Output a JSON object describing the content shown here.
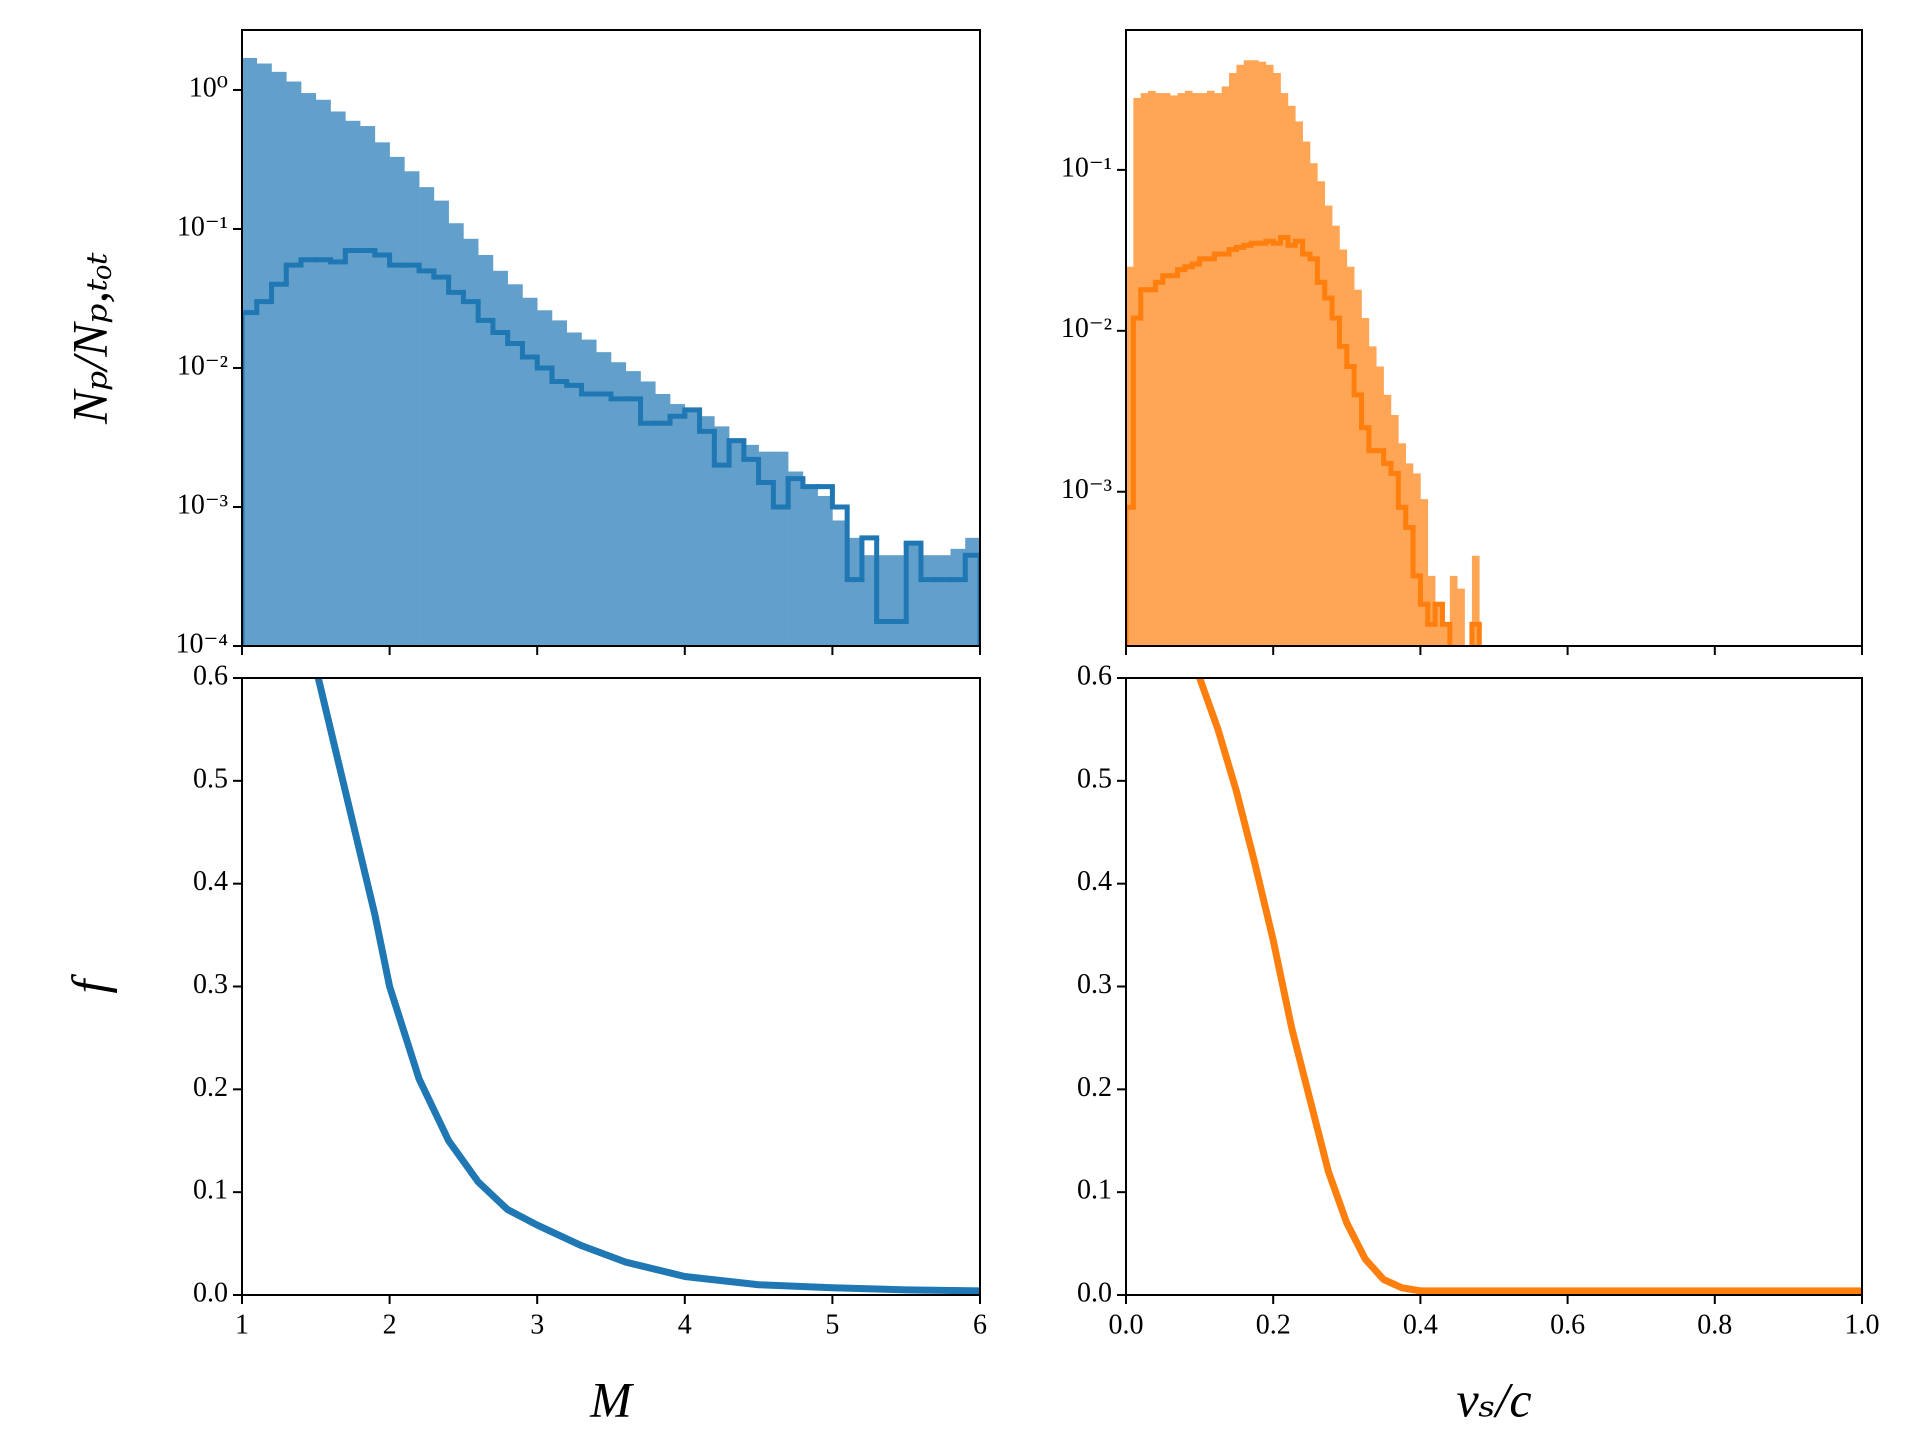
{
  "chart_data": [
    {
      "type": "histogram",
      "log_y": true,
      "ylabel": "Nₚ/Nₚ,ₜₒₜ",
      "xlim": [
        1,
        6
      ],
      "xticks": [
        1,
        2,
        3,
        4,
        5,
        6
      ],
      "ylim": [
        0.0001,
        2.7
      ],
      "yticks": [
        {
          "value": 0.0001,
          "label": "10⁻⁴"
        },
        {
          "value": 0.001,
          "label": "10⁻³"
        },
        {
          "value": 0.01,
          "label": "10⁻²"
        },
        {
          "value": 0.1,
          "label": "10⁻¹"
        },
        {
          "value": 1,
          "label": "10⁰"
        }
      ],
      "bins": [
        1,
        1.1,
        1.2,
        1.3,
        1.4,
        1.5,
        1.6,
        1.7,
        1.8,
        1.9,
        2,
        2.1,
        2.2,
        2.3,
        2.4,
        2.5,
        2.6,
        2.7,
        2.8,
        2.9,
        3,
        3.1,
        3.2,
        3.3,
        3.4,
        3.5,
        3.6,
        3.7,
        3.8,
        3.9,
        4,
        4.1,
        4.2,
        4.3,
        4.4,
        4.5,
        4.6,
        4.7,
        4.8,
        4.9,
        5,
        5.1,
        5.2,
        5.3,
        5.4,
        5.5,
        5.6,
        5.7,
        5.8,
        5.9,
        6
      ],
      "series": [
        {
          "style": "filled",
          "color": "#62a0cb",
          "values": [
            1.7,
            1.55,
            1.35,
            1.15,
            0.95,
            0.85,
            0.7,
            0.6,
            0.55,
            0.42,
            0.33,
            0.26,
            0.2,
            0.16,
            0.11,
            0.085,
            0.065,
            0.05,
            0.04,
            0.032,
            0.026,
            0.022,
            0.018,
            0.016,
            0.013,
            0.011,
            0.0095,
            0.008,
            0.0065,
            0.0055,
            0.005,
            0.0045,
            0.0038,
            0.003,
            0.0028,
            0.0025,
            0.0025,
            0.0018,
            0.0014,
            0.0012,
            0.0008,
            0.0006,
            0.00045,
            0.00045,
            0.00045,
            0.00055,
            0.00045,
            0.00045,
            0.0005,
            0.0006
          ]
        },
        {
          "style": "step",
          "color": "#1f77b4",
          "values": [
            0.025,
            0.03,
            0.04,
            0.055,
            0.06,
            0.06,
            0.058,
            0.07,
            0.07,
            0.065,
            0.055,
            0.055,
            0.05,
            0.045,
            0.035,
            0.03,
            0.022,
            0.018,
            0.015,
            0.012,
            0.01,
            0.008,
            0.0075,
            0.0065,
            0.0065,
            0.006,
            0.006,
            0.004,
            0.004,
            0.0045,
            0.005,
            0.0035,
            0.002,
            0.003,
            0.0022,
            0.0015,
            0.001,
            0.0016,
            0.0014,
            0.0014,
            0.001,
            0.0003,
            0.0006,
            0.00015,
            0.00015,
            0.00055,
            0.0003,
            0.0003,
            0.0003,
            0.00045
          ]
        }
      ]
    },
    {
      "type": "histogram",
      "log_y": true,
      "xlim": [
        0,
        1
      ],
      "xticks": [
        0,
        0.2,
        0.4,
        0.6,
        0.8,
        1
      ],
      "ylim": [
        0.00011,
        0.74
      ],
      "yticks": [
        {
          "value": 0.001,
          "label": "10⁻³"
        },
        {
          "value": 0.01,
          "label": "10⁻²"
        },
        {
          "value": 0.1,
          "label": "10⁻¹"
        }
      ],
      "bins": [
        0,
        0.01,
        0.02,
        0.03,
        0.04,
        0.05,
        0.06,
        0.07,
        0.08,
        0.09,
        0.1,
        0.11,
        0.12,
        0.13,
        0.14,
        0.15,
        0.16,
        0.17,
        0.18,
        0.19,
        0.2,
        0.21,
        0.22,
        0.23,
        0.24,
        0.25,
        0.26,
        0.27,
        0.28,
        0.29,
        0.3,
        0.31,
        0.32,
        0.33,
        0.34,
        0.35,
        0.36,
        0.37,
        0.38,
        0.39,
        0.4,
        0.41,
        0.42,
        0.43,
        0.44,
        0.45,
        0.46,
        0.47,
        0.48
      ],
      "series": [
        {
          "style": "filled",
          "color": "#ffa556",
          "values": [
            0.025,
            0.28,
            0.3,
            0.31,
            0.3,
            0.3,
            0.29,
            0.3,
            0.31,
            0.3,
            0.3,
            0.31,
            0.3,
            0.33,
            0.4,
            0.45,
            0.48,
            0.48,
            0.47,
            0.45,
            0.4,
            0.3,
            0.25,
            0.2,
            0.15,
            0.11,
            0.085,
            0.06,
            0.045,
            0.032,
            0.025,
            0.018,
            0.012,
            0.008,
            0.006,
            0.004,
            0.003,
            0.002,
            0.0015,
            0.0013,
            0.0009,
            0.0003,
            0.0002,
            0.00015,
            0.0003,
            0.00025,
            0,
            0.0004
          ]
        },
        {
          "style": "step",
          "color": "#ff7f0e",
          "values": [
            0.0008,
            0.012,
            0.018,
            0.018,
            0.02,
            0.022,
            0.022,
            0.024,
            0.025,
            0.026,
            0.028,
            0.028,
            0.03,
            0.03,
            0.032,
            0.033,
            0.034,
            0.035,
            0.035,
            0.036,
            0.035,
            0.038,
            0.034,
            0.036,
            0.03,
            0.028,
            0.02,
            0.016,
            0.012,
            0.008,
            0.006,
            0.004,
            0.0025,
            0.0018,
            0.0018,
            0.0015,
            0.0013,
            0.0008,
            0.0006,
            0.0003,
            0.0002,
            0.00015,
            0.0002,
            0.00015,
            0,
            0,
            0,
            0.00015
          ]
        }
      ]
    },
    {
      "type": "line",
      "xlabel": "M",
      "ylabel": "f",
      "xlim": [
        1,
        6
      ],
      "xticks": [
        1,
        2,
        3,
        4,
        5,
        6
      ],
      "ylim": [
        0,
        0.6
      ],
      "yticks": [
        {
          "value": 0,
          "label": "0.0"
        },
        0.1,
        0.2,
        0.3,
        0.4,
        0.5,
        0.6
      ],
      "x": [
        1.5,
        1.6,
        1.7,
        1.8,
        1.9,
        2,
        2.2,
        2.4,
        2.6,
        2.8,
        3,
        3.3,
        3.6,
        4,
        4.5,
        5,
        5.5,
        6
      ],
      "series": [
        {
          "color": "#1f77b4",
          "values": [
            0.61,
            0.55,
            0.49,
            0.43,
            0.37,
            0.3,
            0.21,
            0.15,
            0.11,
            0.083,
            0.068,
            0.048,
            0.032,
            0.018,
            0.01,
            0.007,
            0.005,
            0.004
          ]
        }
      ]
    },
    {
      "type": "line",
      "xlabel": "vₛ/c",
      "xlim": [
        0,
        1
      ],
      "xticks": [
        {
          "value": 0,
          "label": "0.0"
        },
        0.2,
        0.4,
        0.6,
        0.8,
        {
          "value": 1,
          "label": "1.0"
        }
      ],
      "ylim": [
        0,
        0.6
      ],
      "yticks": [
        {
          "value": 0,
          "label": "0.0"
        },
        0.1,
        0.2,
        0.3,
        0.4,
        0.5,
        0.6
      ],
      "x": [
        0.1,
        0.125,
        0.15,
        0.175,
        0.2,
        0.225,
        0.25,
        0.275,
        0.3,
        0.325,
        0.35,
        0.375,
        0.4,
        0.5,
        1
      ],
      "series": [
        {
          "color": "#ff7f0e",
          "values": [
            0.6,
            0.55,
            0.49,
            0.42,
            0.345,
            0.26,
            0.19,
            0.12,
            0.07,
            0.035,
            0.015,
            0.007,
            0.004,
            0.004,
            0.004
          ]
        }
      ]
    }
  ]
}
